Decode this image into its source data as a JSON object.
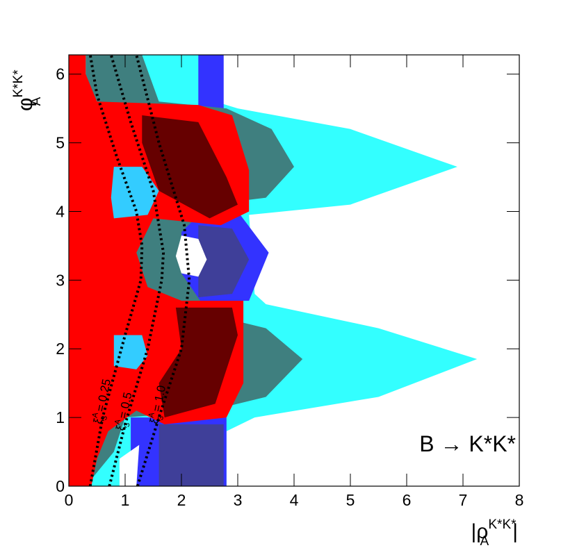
{
  "chart_data": {
    "type": "region",
    "annotation": "B → K*K*",
    "x_label": {
      "base": "|ρ",
      "sup": "K*K*",
      "sub": "A",
      "end": "|"
    },
    "y_label": {
      "base": "φ",
      "sup": "K*K*",
      "sub": "A"
    },
    "xlim": [
      0,
      8
    ],
    "ylim": [
      0,
      6.28
    ],
    "xticks": [
      0,
      1,
      2,
      3,
      4,
      5,
      6,
      7,
      8
    ],
    "yticks": [
      0,
      1,
      2,
      3,
      4,
      5,
      6
    ],
    "regions": [
      {
        "color": "#33ffff",
        "x": [
          0.3,
          2.7,
          2.6,
          3.0,
          5.0,
          6.9,
          5.0,
          3.2,
          3.3,
          3.5,
          5.5,
          7.25,
          5.5,
          3.3,
          2.8,
          2.8,
          0.3
        ],
        "y": [
          6.28,
          6.28,
          5.6,
          5.5,
          5.2,
          4.65,
          4.1,
          3.95,
          2.8,
          2.65,
          2.3,
          1.85,
          1.3,
          1.0,
          0.8,
          0,
          0
        ]
      },
      {
        "color": "#3333ff",
        "x": [
          1.3,
          3.0,
          3.55,
          3.2,
          1.3
        ],
        "y": [
          4.0,
          4.0,
          3.4,
          2.7,
          2.7
        ]
      },
      {
        "color": "#3333ff",
        "x": [
          1.1,
          2.8,
          2.8,
          1.1
        ],
        "y": [
          0,
          0,
          1.0,
          1.0
        ]
      },
      {
        "color": "#3333ff",
        "x": [
          2.3,
          2.75,
          2.75,
          2.3
        ],
        "y": [
          6.28,
          6.28,
          5.5,
          5.5
        ]
      },
      {
        "color": "#3f3f99",
        "x": [
          2.3,
          2.9,
          3.2,
          2.9,
          2.3
        ],
        "y": [
          3.8,
          3.75,
          3.3,
          2.8,
          2.75
        ]
      },
      {
        "color": "#3f3f99",
        "x": [
          1.6,
          2.75,
          2.75,
          1.6
        ],
        "y": [
          0.9,
          0.9,
          0,
          0
        ]
      },
      {
        "color": "#3f7f7f",
        "x": [
          0.3,
          1.3,
          1.6,
          2.8,
          3.6,
          4.0,
          3.5,
          2.5,
          2.0,
          2.0,
          2.5,
          3.5,
          4.15,
          3.5,
          2.5,
          1.0,
          0.8,
          0.3
        ],
        "y": [
          6.28,
          6.28,
          5.6,
          5.5,
          5.2,
          4.65,
          4.2,
          4.1,
          3.7,
          3.1,
          2.5,
          2.3,
          1.85,
          1.3,
          1.1,
          1.0,
          0.5,
          0
        ]
      },
      {
        "color": "#ff0000",
        "x": [
          0,
          0.3,
          0.3,
          0.5,
          2.3,
          2.9,
          3.2,
          3.2,
          2.7,
          1.5,
          1.2,
          1.4,
          2.0,
          3.1,
          3.1,
          2.8,
          1.7,
          1.2,
          0.7,
          0.5,
          0.4,
          0
        ],
        "y": [
          6.28,
          6.28,
          6.0,
          5.6,
          5.55,
          5.4,
          4.6,
          4.0,
          3.8,
          3.9,
          3.4,
          2.9,
          2.7,
          2.7,
          1.5,
          1.0,
          0.9,
          1.1,
          0.8,
          0.4,
          0,
          0
        ]
      },
      {
        "color": "#660000",
        "x": [
          1.3,
          2.3,
          2.8,
          3.0,
          2.5,
          1.6,
          1.3
        ],
        "y": [
          5.4,
          5.3,
          4.5,
          4.1,
          3.9,
          4.3,
          5.0
        ]
      },
      {
        "color": "#660000",
        "x": [
          1.9,
          2.9,
          3.0,
          2.6,
          1.7,
          1.6,
          2.0
        ],
        "y": [
          2.6,
          2.6,
          2.2,
          1.2,
          1.0,
          1.5,
          2.0
        ]
      },
      {
        "color": "#33ccff",
        "x": [
          0.8,
          1.3,
          1.6,
          1.4,
          0.8,
          0.75
        ],
        "y": [
          4.65,
          4.65,
          4.3,
          3.95,
          3.9,
          4.2
        ]
      },
      {
        "color": "#33ccff",
        "x": [
          0.8,
          1.3,
          1.4,
          1.2,
          0.8
        ],
        "y": [
          2.2,
          2.2,
          1.9,
          1.7,
          1.75
        ]
      },
      {
        "color": "#ffffff",
        "x": [
          2.0,
          2.3,
          2.45,
          2.3,
          2.0,
          1.9
        ],
        "y": [
          3.65,
          3.6,
          3.3,
          3.05,
          3.1,
          3.35
        ]
      },
      {
        "color": "#ffffff",
        "x": [
          0.9,
          1.2,
          1.25,
          0.9
        ],
        "y": [
          0,
          0,
          0.6,
          0.4
        ]
      }
    ],
    "curves": [
      {
        "label": {
          "base": "ξ",
          "sup": "A",
          "sub": "3",
          "rest": " = 0.25"
        },
        "x": [
          0.38,
          0.6,
          1.0,
          1.28,
          1.3,
          1.2,
          0.85,
          0.5,
          0.38
        ],
        "y": [
          0,
          1.0,
          2.2,
          3.0,
          3.5,
          4.0,
          4.8,
          5.7,
          6.28
        ]
      },
      {
        "label": {
          "base": "ξ",
          "sup": "A",
          "sub": "3",
          "rest": " = 0.5"
        },
        "x": [
          0.72,
          1.0,
          1.4,
          1.65,
          1.68,
          1.5,
          1.1,
          0.75
        ],
        "y": [
          0,
          0.9,
          2.0,
          3.0,
          3.4,
          4.3,
          5.3,
          6.28
        ]
      },
      {
        "label": {
          "base": "ξ",
          "sup": "A",
          "sub": "3",
          "rest": " = 1.0"
        },
        "x": [
          1.22,
          1.6,
          2.0,
          2.14,
          2.05,
          1.6,
          1.2
        ],
        "y": [
          0,
          1.0,
          2.0,
          3.0,
          3.8,
          5.0,
          6.28
        ]
      }
    ]
  }
}
